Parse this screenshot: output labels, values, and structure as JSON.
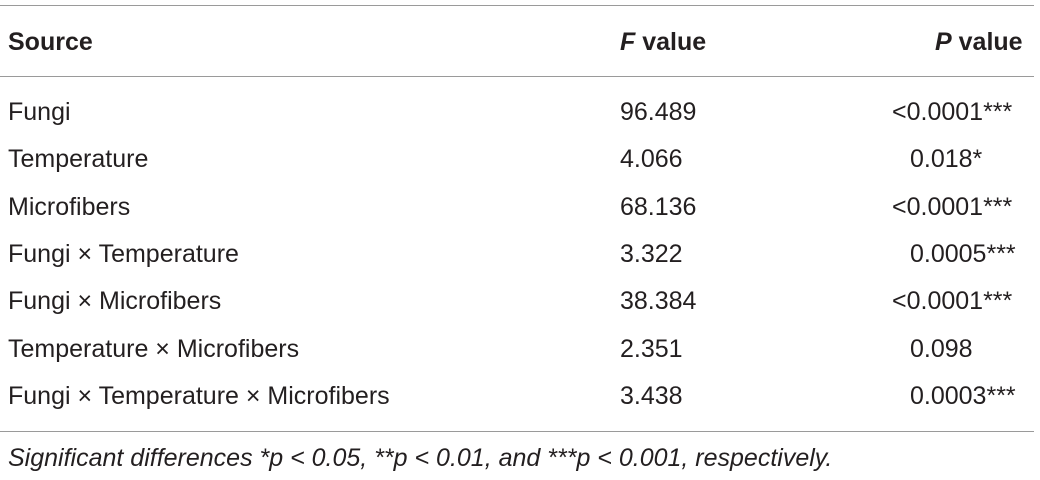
{
  "table": {
    "header": [
      {
        "text": "Source"
      },
      {
        "italic": "F",
        "text": " value"
      },
      {
        "italic": "P",
        "text": " value"
      }
    ],
    "rows": [
      [
        "Fungi",
        "96.489",
        "<0.0001***"
      ],
      [
        "Temperature",
        "4.066",
        "0.018*"
      ],
      [
        "Microfibers",
        "68.136",
        "<0.0001***"
      ],
      [
        "Fungi × Temperature",
        "3.322",
        "0.0005***"
      ],
      [
        "Fungi × Microfibers",
        "38.384",
        "<0.0001***"
      ],
      [
        "Temperature × Microfibers",
        "2.351",
        "0.098"
      ],
      [
        "Fungi × Temperature × Microfibers",
        "3.438",
        "0.0003***"
      ]
    ],
    "footnote": "Significant differences *p < 0.05, **p < 0.01, and ***p < 0.001, respectively."
  }
}
